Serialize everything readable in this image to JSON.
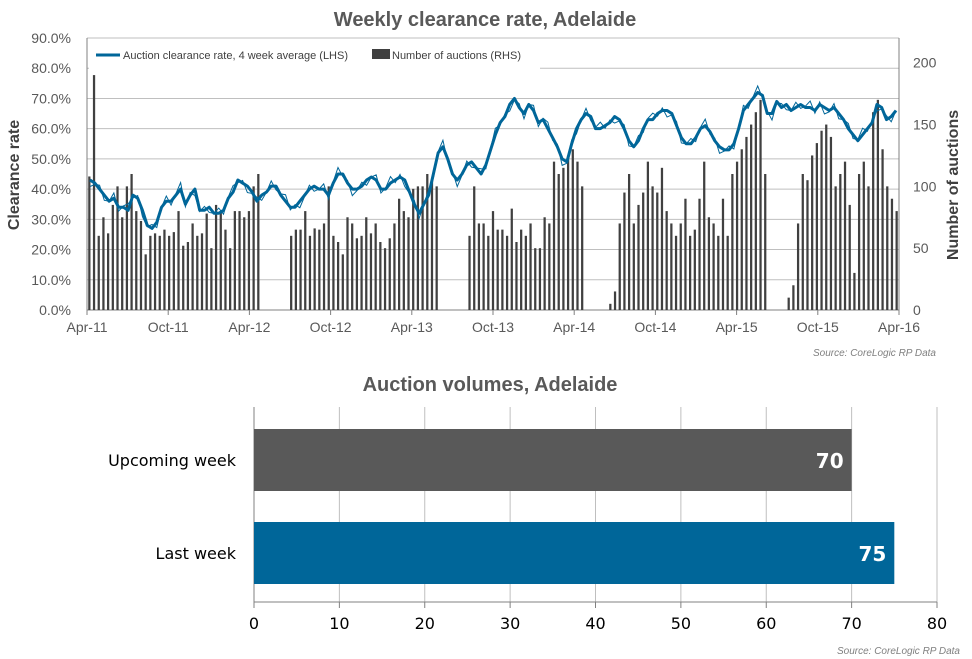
{
  "chart_data": [
    {
      "type": "bar+line",
      "title": "Weekly clearance rate, Adelaide",
      "ylabel": "Clearance rate",
      "y2label": "Number of auctions",
      "source": "Source: CoreLogic  RP Data",
      "ylim": [
        0,
        90
      ],
      "y2lim": [
        0,
        220
      ],
      "y_ticks": [
        "0.0%",
        "10.0%",
        "20.0%",
        "30.0%",
        "40.0%",
        "50.0%",
        "60.0%",
        "70.0%",
        "80.0%",
        "90.0%"
      ],
      "y2_ticks": [
        "0",
        "50",
        "100",
        "150",
        "200"
      ],
      "x_ticks": [
        "Apr-11",
        "Oct-11",
        "Apr-12",
        "Oct-12",
        "Apr-13",
        "Oct-13",
        "Apr-14",
        "Oct-14",
        "Apr-15",
        "Oct-15",
        "Apr-16"
      ],
      "grid": true,
      "legend_position": "top-left",
      "series": [
        {
          "name": "Auction clearance rate, 4 week average (LHS)",
          "axis": "left",
          "color": "#006699",
          "values": [
            43,
            42,
            40,
            38,
            36,
            37,
            34,
            34,
            33,
            38,
            37,
            33,
            28,
            27,
            29,
            34,
            36,
            36,
            38,
            40,
            35,
            38,
            40,
            33,
            33,
            34,
            32,
            32,
            33,
            37,
            39,
            43,
            42,
            41,
            39,
            36,
            38,
            39,
            41,
            41,
            38,
            36,
            34,
            34,
            36,
            38,
            40,
            41,
            40,
            40,
            38,
            42,
            45,
            45,
            42,
            40,
            40,
            41,
            43,
            44,
            43,
            40,
            40,
            42,
            43,
            44,
            43,
            39,
            35,
            32,
            35,
            38,
            45,
            52,
            54,
            50,
            45,
            43,
            45,
            48,
            49,
            47,
            45,
            48,
            53,
            58,
            62,
            64,
            68,
            70,
            67,
            65,
            68,
            66,
            62,
            63,
            60,
            57,
            54,
            50,
            49,
            55,
            60,
            63,
            65,
            64,
            60,
            60,
            61,
            62,
            64,
            63,
            60,
            56,
            54,
            56,
            60,
            63,
            63,
            65,
            66,
            66,
            65,
            61,
            57,
            55,
            55,
            57,
            60,
            61,
            59,
            56,
            54,
            53,
            53,
            55,
            60,
            66,
            68,
            70,
            72,
            71,
            65,
            65,
            69,
            67,
            68,
            66,
            67,
            68,
            67,
            67,
            66,
            68,
            67,
            66,
            67,
            65,
            63,
            60,
            58,
            56,
            58,
            60,
            62,
            68,
            67,
            63,
            64,
            66
          ]
        },
        {
          "name": "Number of auctions (RHS)",
          "axis": "right",
          "color": "#404040",
          "values": [
            108,
            190,
            60,
            75,
            62,
            85,
            100,
            75,
            100,
            110,
            80,
            72,
            45,
            60,
            62,
            60,
            65,
            60,
            63,
            80,
            52,
            55,
            70,
            60,
            62,
            78,
            50,
            85,
            80,
            65,
            50,
            80,
            80,
            75,
            80,
            100,
            110,
            0,
            0,
            0,
            0,
            0,
            0,
            60,
            65,
            65,
            80,
            60,
            66,
            65,
            70,
            100,
            60,
            55,
            45,
            75,
            70,
            58,
            60,
            75,
            62,
            70,
            55,
            50,
            58,
            70,
            90,
            80,
            75,
            98,
            100,
            100,
            110,
            105,
            100,
            0,
            0,
            0,
            0,
            0,
            0,
            60,
            100,
            70,
            70,
            60,
            80,
            65,
            65,
            60,
            82,
            55,
            65,
            60,
            70,
            50,
            50,
            75,
            70,
            120,
            110,
            115,
            125,
            130,
            120,
            100,
            0,
            0,
            0,
            0,
            0,
            5,
            15,
            70,
            95,
            110,
            70,
            85,
            95,
            120,
            100,
            95,
            115,
            80,
            70,
            60,
            70,
            90,
            60,
            65,
            90,
            120,
            75,
            70,
            60,
            90,
            60,
            110,
            120,
            130,
            140,
            150,
            160,
            170,
            110,
            0,
            0,
            0,
            0,
            10,
            20,
            70,
            110,
            105,
            125,
            135,
            145,
            150,
            140,
            100,
            110,
            120,
            85,
            30,
            110,
            120,
            100,
            160,
            170,
            130,
            100,
            90,
            80
          ]
        }
      ]
    },
    {
      "type": "bar",
      "title": "Auction volumes, Adelaide",
      "source": "Source: CoreLogic  RP Data",
      "orientation": "horizontal",
      "categories": [
        "Upcoming week",
        "Last week"
      ],
      "values": [
        70,
        75
      ],
      "bar_colors": [
        "#595959",
        "#006699"
      ],
      "xlim": [
        0,
        80
      ],
      "x_ticks": [
        "0",
        "10",
        "20",
        "30",
        "40",
        "50",
        "60",
        "70",
        "80"
      ],
      "grid": true
    }
  ]
}
